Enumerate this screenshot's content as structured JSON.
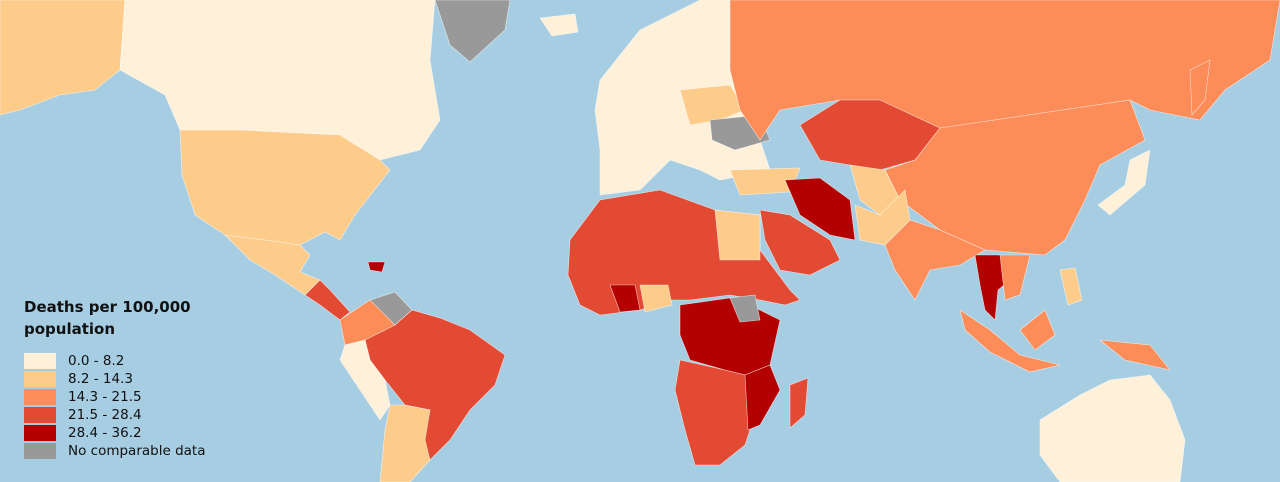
{
  "legend": {
    "title": "Deaths per 100,000 population",
    "items": [
      {
        "label": "0.0 - 8.2",
        "color": "#fef0d9"
      },
      {
        "label": "8.2 - 14.3",
        "color": "#fdcc8a"
      },
      {
        "label": "14.3 - 21.5",
        "color": "#fc8d59"
      },
      {
        "label": "21.5 - 28.4",
        "color": "#e34a33"
      },
      {
        "label": "28.4 - 36.2",
        "color": "#b30000"
      },
      {
        "label": "No comparable data",
        "color": "#999999"
      }
    ]
  }
}
